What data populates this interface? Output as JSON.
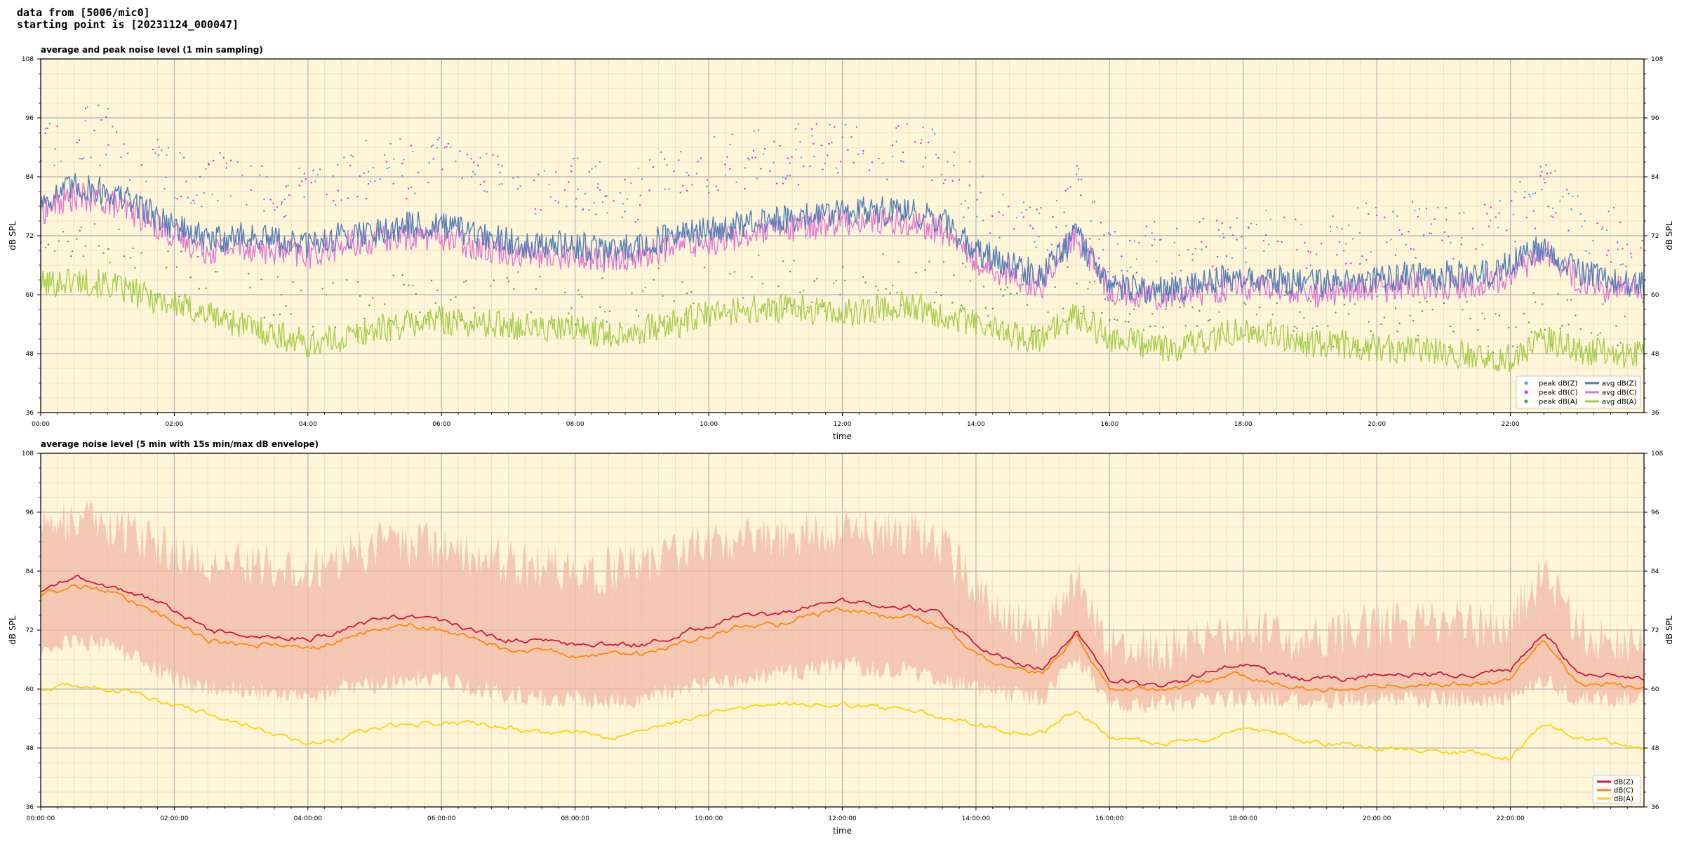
{
  "header": {
    "line1": "data from [5006/mic0]",
    "line2": "starting point is [20231124_000047]"
  },
  "colors": {
    "plot_bg": "#FFF5D9",
    "grid_major": "#B5B5B5",
    "grid_minor": "#EBDDBE",
    "peak_z": "#3BA7E0",
    "peak_c": "#E02BE8",
    "peak_a": "#4C9E4C",
    "avg_z": "#4F7FB8",
    "avg_c": "#E077D6",
    "avg_a": "#A6CE4A",
    "db_z": "#D4173A",
    "db_c": "#FF8A00",
    "db_a": "#FFD400",
    "envelope": "#F2B8A6"
  },
  "chart_data": [
    {
      "type": "line",
      "title": "average and peak noise level (1 min sampling)",
      "xlabel": "time",
      "ylabel": "dB SPL",
      "xlim": [
        "00:00",
        "24:00"
      ],
      "ylim": [
        36,
        108
      ],
      "yticks": [
        "36",
        "48",
        "60",
        "72",
        "84",
        "96",
        "108"
      ],
      "xticks": [
        "00:00",
        "02:00",
        "04:00",
        "06:00",
        "08:00",
        "10:00",
        "12:00",
        "14:00",
        "16:00",
        "18:00",
        "20:00",
        "22:00"
      ],
      "grid": true,
      "legend_position": "bottom-right",
      "legend": [
        {
          "label": "peak dB(Z)",
          "kind": "marker",
          "color_key": "peak_z"
        },
        {
          "label": "peak dB(C)",
          "kind": "marker",
          "color_key": "peak_c"
        },
        {
          "label": "peak dB(A)",
          "kind": "marker",
          "color_key": "peak_a"
        },
        {
          "label": "avg dB(Z)",
          "kind": "line",
          "color_key": "avg_z"
        },
        {
          "label": "avg dB(C)",
          "kind": "line",
          "color_key": "avg_c"
        },
        {
          "label": "avg dB(A)",
          "kind": "line",
          "color_key": "avg_a"
        }
      ],
      "x_hours": [
        0,
        0.5,
        1,
        1.5,
        2,
        2.5,
        3,
        3.5,
        4,
        4.5,
        5,
        5.5,
        6,
        6.5,
        7,
        7.5,
        8,
        8.5,
        9,
        9.5,
        10,
        10.5,
        11,
        11.5,
        12,
        12.5,
        13,
        13.5,
        14,
        14.5,
        15,
        15.5,
        16,
        16.5,
        17,
        17.5,
        18,
        18.5,
        19,
        19.5,
        20,
        20.5,
        21,
        21.5,
        22,
        22.5,
        23,
        23.5,
        24
      ],
      "series": [
        {
          "name": "avg dB(Z)",
          "color_key": "avg_z",
          "values": [
            79,
            82,
            81,
            78,
            74,
            71,
            72,
            71,
            70,
            72,
            73,
            74,
            74,
            72,
            71,
            70,
            70,
            69,
            70,
            72,
            73,
            74,
            75,
            76,
            77,
            77,
            77,
            75,
            69,
            66,
            64,
            72,
            62,
            61,
            61,
            63,
            64,
            63,
            62,
            63,
            63,
            64,
            64,
            64,
            66,
            70,
            65,
            63,
            62
          ]
        },
        {
          "name": "avg dB(C)",
          "color_key": "avg_c",
          "values": [
            77,
            80,
            79,
            76,
            72,
            69,
            70,
            69,
            68,
            70,
            71,
            72,
            72,
            70,
            69,
            68,
            68,
            67,
            68,
            70,
            71,
            72,
            73,
            74,
            75,
            75,
            75,
            73,
            67,
            64,
            62,
            72,
            61,
            60,
            60,
            61,
            62,
            61,
            60,
            61,
            61,
            62,
            62,
            62,
            64,
            69,
            63,
            61,
            61
          ]
        },
        {
          "name": "avg dB(A)",
          "color_key": "avg_a",
          "values": [
            62,
            63,
            62,
            60,
            58,
            56,
            54,
            52,
            50,
            51,
            53,
            54,
            55,
            54,
            54,
            53,
            53,
            52,
            53,
            54,
            56,
            57,
            57,
            57,
            56,
            57,
            58,
            56,
            54,
            52,
            51,
            56,
            51,
            50,
            49,
            51,
            53,
            52,
            50,
            50,
            49,
            49,
            48,
            48,
            47,
            51,
            49,
            48,
            48
          ]
        },
        {
          "name": "peak dB(Z)",
          "color_key": "peak_z",
          "values": [
            91,
            93,
            93,
            89,
            85,
            83,
            83,
            82,
            81,
            84,
            86,
            86,
            87,
            84,
            83,
            82,
            82,
            81,
            82,
            86,
            87,
            88,
            88,
            90,
            90,
            90,
            90,
            87,
            80,
            76,
            73,
            83,
            70,
            69,
            69,
            71,
            72,
            71,
            70,
            72,
            73,
            74,
            74,
            74,
            76,
            82,
            75,
            72,
            71
          ]
        },
        {
          "name": "peak dB(C)",
          "color_key": "peak_c",
          "values": [
            90,
            92,
            92,
            88,
            84,
            82,
            82,
            81,
            80,
            83,
            85,
            85,
            86,
            83,
            82,
            81,
            81,
            80,
            81,
            85,
            86,
            87,
            87,
            89,
            89,
            89,
            89,
            86,
            79,
            75,
            72,
            82,
            69,
            68,
            68,
            70,
            71,
            70,
            69,
            71,
            72,
            73,
            73,
            73,
            75,
            81,
            74,
            71,
            70
          ]
        },
        {
          "name": "peak dB(A)",
          "color_key": "peak_a",
          "values": [
            69,
            70,
            69,
            67,
            64,
            62,
            60,
            58,
            56,
            57,
            59,
            60,
            61,
            60,
            60,
            59,
            59,
            58,
            59,
            60,
            62,
            63,
            63,
            63,
            62,
            63,
            64,
            62,
            60,
            58,
            57,
            62,
            56,
            55,
            54,
            56,
            58,
            57,
            55,
            55,
            54,
            54,
            53,
            53,
            52,
            56,
            54,
            53,
            53
          ]
        }
      ]
    },
    {
      "type": "line",
      "title": "average noise level (5 min with 15s min/max dB envelope)",
      "xlabel": "time",
      "ylabel": "dB SPL",
      "xlim": [
        "00:00:00",
        "24:00:00"
      ],
      "ylim": [
        36,
        108
      ],
      "yticks": [
        "36",
        "48",
        "60",
        "72",
        "84",
        "96",
        "108"
      ],
      "xticks": [
        "00:00:00",
        "02:00:00",
        "04:00:00",
        "06:00:00",
        "08:00:00",
        "10:00:00",
        "12:00:00",
        "14:00:00",
        "16:00:00",
        "18:00:00",
        "20:00:00",
        "22:00:00"
      ],
      "grid": true,
      "legend_position": "bottom-right",
      "legend": [
        {
          "label": "dB(Z)",
          "kind": "line",
          "color_key": "db_z"
        },
        {
          "label": "dB(C)",
          "kind": "line",
          "color_key": "db_c"
        },
        {
          "label": "dB(A)",
          "kind": "line",
          "color_key": "db_a"
        }
      ],
      "x_hours": [
        0,
        0.5,
        1,
        1.5,
        2,
        2.5,
        3,
        3.5,
        4,
        4.5,
        5,
        5.5,
        6,
        6.5,
        7,
        7.5,
        8,
        8.5,
        9,
        9.5,
        10,
        10.5,
        11,
        11.5,
        12,
        12.5,
        13,
        13.5,
        14,
        14.5,
        15,
        15.5,
        16,
        16.5,
        17,
        17.5,
        18,
        18.5,
        19,
        19.5,
        20,
        20.5,
        21,
        21.5,
        22,
        22.5,
        23,
        23.5,
        24
      ],
      "envelope": {
        "upper": [
          93,
          95,
          94,
          91,
          88,
          86,
          86,
          85,
          84,
          87,
          89,
          89,
          89,
          87,
          86,
          85,
          85,
          84,
          85,
          88,
          90,
          90,
          91,
          92,
          92,
          92,
          92,
          89,
          80,
          74,
          71,
          83,
          69,
          68,
          68,
          71,
          72,
          71,
          70,
          72,
          73,
          73,
          73,
          73,
          74,
          84,
          72,
          70,
          69
        ],
        "lower": [
          68,
          70,
          69,
          66,
          62,
          60,
          60,
          59,
          58,
          60,
          61,
          62,
          62,
          60,
          59,
          58,
          58,
          57,
          58,
          60,
          61,
          62,
          63,
          64,
          65,
          64,
          64,
          62,
          60,
          59,
          58,
          67,
          57,
          57,
          57,
          58,
          58,
          58,
          57,
          58,
          58,
          58,
          58,
          58,
          58,
          62,
          58,
          58,
          58
        ]
      },
      "series": [
        {
          "name": "dB(Z)",
          "color_key": "db_z",
          "values": [
            80,
            83,
            81,
            79,
            76,
            72,
            71,
            71,
            70,
            72,
            74,
            75,
            74,
            72,
            70,
            70,
            69,
            69,
            69,
            71,
            73,
            75,
            75,
            77,
            78,
            77,
            77,
            75,
            69,
            66,
            64,
            72,
            62,
            61,
            61,
            64,
            65,
            63,
            62,
            62,
            63,
            63,
            63,
            63,
            64,
            72,
            63,
            63,
            62
          ]
        },
        {
          "name": "dB(C)",
          "color_key": "db_c",
          "values": [
            79,
            81,
            80,
            77,
            74,
            70,
            69,
            69,
            68,
            70,
            72,
            73,
            72,
            70,
            68,
            68,
            67,
            67,
            67,
            69,
            71,
            73,
            73,
            75,
            76,
            75,
            75,
            73,
            67,
            64,
            63,
            71,
            60,
            60,
            60,
            62,
            63,
            61,
            60,
            60,
            61,
            61,
            61,
            61,
            62,
            70,
            61,
            61,
            60
          ]
        },
        {
          "name": "dB(A)",
          "color_key": "db_a",
          "values": [
            60,
            61,
            60,
            59,
            57,
            55,
            53,
            51,
            49,
            50,
            52,
            53,
            53,
            53,
            52,
            51,
            51,
            50,
            51,
            53,
            55,
            56,
            57,
            57,
            57,
            56,
            56,
            54,
            53,
            51,
            51,
            56,
            50,
            49,
            49,
            50,
            52,
            51,
            49,
            49,
            48,
            48,
            47,
            47,
            46,
            53,
            50,
            49,
            48
          ]
        }
      ]
    }
  ]
}
